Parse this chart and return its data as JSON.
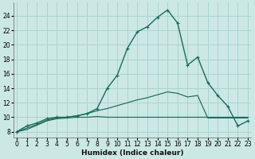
{
  "xlabel": "Humidex (Indice chaleur)",
  "bg_color": "#cce8e5",
  "grid_color": "#aad4d0",
  "line_color": "#1a6b5a",
  "x_ticks": [
    0,
    1,
    2,
    3,
    4,
    5,
    6,
    7,
    8,
    9,
    10,
    11,
    12,
    13,
    14,
    15,
    16,
    17,
    18,
    19,
    20,
    21,
    22,
    23
  ],
  "y_ticks": [
    8,
    10,
    12,
    14,
    16,
    18,
    20,
    22,
    24
  ],
  "xlim": [
    -0.3,
    23.3
  ],
  "ylim": [
    7.2,
    25.8
  ],
  "main_line": [
    8.0,
    8.8,
    9.2,
    9.8,
    10.0,
    10.0,
    10.2,
    10.5,
    11.2,
    14.0,
    15.8,
    19.5,
    21.8,
    22.5,
    23.8,
    24.8,
    23.0,
    17.2,
    18.3,
    14.8,
    13.0,
    11.5,
    8.8,
    9.5
  ],
  "upper_line": [
    8.0,
    8.5,
    9.0,
    9.6,
    9.9,
    10.0,
    10.2,
    10.5,
    10.9,
    11.2,
    11.6,
    12.0,
    12.4,
    12.7,
    13.1,
    13.5,
    13.3,
    12.8,
    13.0,
    9.9,
    9.9,
    9.9,
    9.9,
    9.9
  ],
  "lower_line": [
    8.0,
    8.3,
    8.9,
    9.5,
    9.8,
    9.9,
    10.0,
    10.0,
    10.1,
    10.0,
    10.0,
    10.0,
    10.0,
    10.0,
    10.0,
    10.0,
    10.0,
    10.0,
    10.0,
    10.0,
    10.0,
    10.0,
    10.0,
    10.0
  ],
  "xlabel_fontsize": 6.5,
  "tick_fontsize": 5.5
}
